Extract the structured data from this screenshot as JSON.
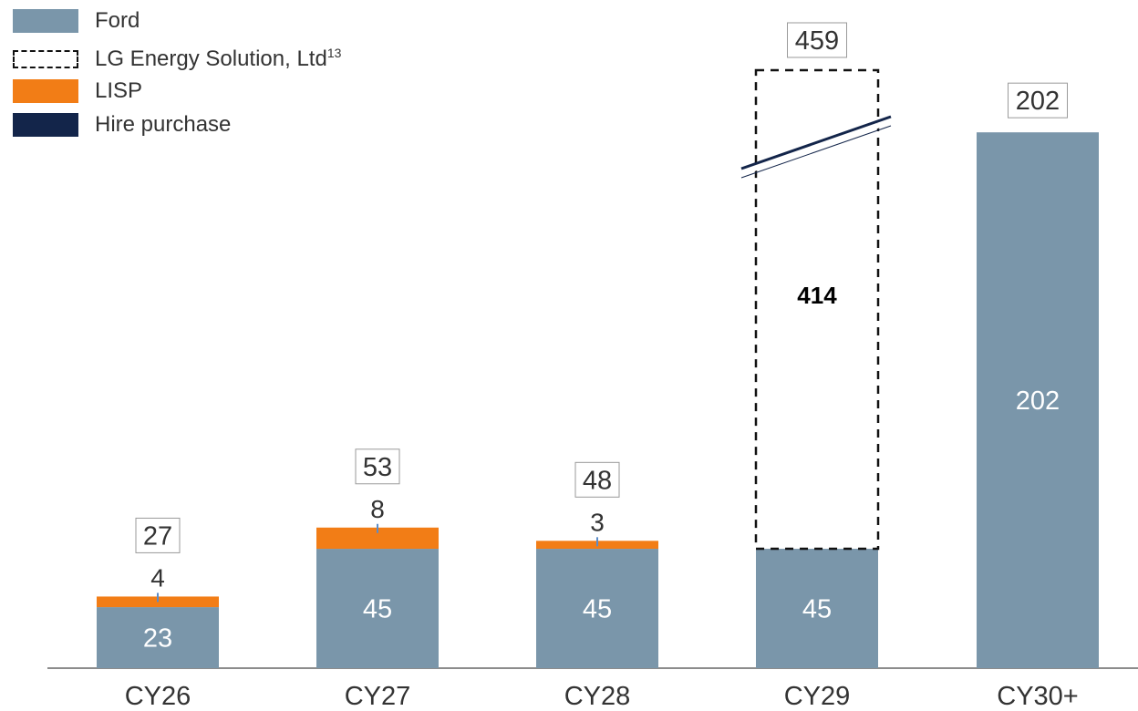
{
  "colors": {
    "ford": "#7a96aa",
    "lisp": "#f27d16",
    "hire_purchase": "#13254a",
    "lg_border": "#111111",
    "axis": "#666666",
    "text": "#333333",
    "label_on_bar": "#ffffff",
    "connector": "#5b8cc9"
  },
  "legend": {
    "ford": "Ford",
    "lg_name": "LG Energy Solution, Ltd",
    "lg_footnote": "13",
    "lisp": "LISP",
    "hire_purchase": "Hire purchase"
  },
  "chart_data": {
    "type": "bar",
    "stacked": true,
    "categories": [
      "CY26",
      "CY27",
      "CY28",
      "CY29",
      "CY30+"
    ],
    "series": [
      {
        "name": "Ford",
        "values": [
          23,
          45,
          45,
          45,
          202
        ],
        "labels": [
          "23",
          "45",
          "45",
          "45",
          "202"
        ]
      },
      {
        "name": "LISP",
        "values": [
          4,
          8,
          3,
          0,
          0
        ],
        "labels": [
          "4",
          "8",
          "3",
          "",
          ""
        ]
      },
      {
        "name": "LG Energy Solution, Ltd",
        "values": [
          0,
          0,
          0,
          414,
          0
        ],
        "labels": [
          "",
          "",
          "",
          "414",
          ""
        ],
        "style": "dashed-outline",
        "axis_break": true
      },
      {
        "name": "Hire purchase",
        "values": [
          0,
          0,
          0,
          0,
          0
        ]
      }
    ],
    "totals": [
      "27",
      "53",
      "48",
      "459",
      "202"
    ],
    "legend_position": "top-left",
    "grid": false
  }
}
